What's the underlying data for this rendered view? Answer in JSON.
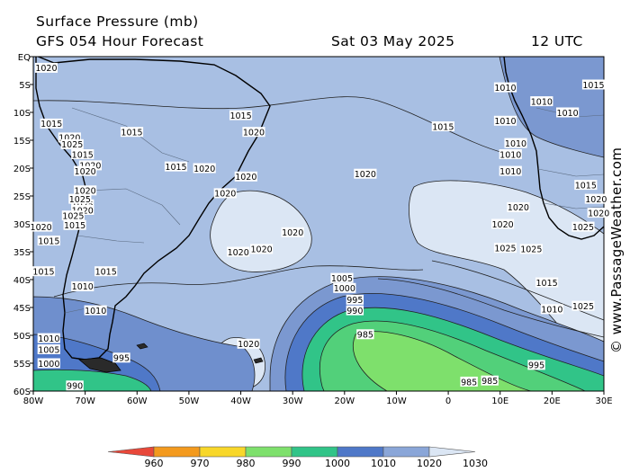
{
  "header": {
    "title": "Surface Pressure (mb)",
    "model": "GFS 054 Hour Forecast",
    "date": "Sat 03 May 2025",
    "time": "12 UTC"
  },
  "credit": "© www.PassageWeather.com",
  "axes": {
    "lat_labels": [
      "EQ",
      "5S",
      "10S",
      "15S",
      "20S",
      "25S",
      "30S",
      "35S",
      "40S",
      "45S",
      "50S",
      "55S",
      "60S"
    ],
    "lon_labels": [
      "80W",
      "70W",
      "60W",
      "50W",
      "40W",
      "30W",
      "20W",
      "10W",
      "0",
      "10E",
      "20E",
      "30E"
    ]
  },
  "legend": {
    "ticks": [
      "960",
      "970",
      "980",
      "990",
      "1000",
      "1010",
      "1020",
      "1030"
    ],
    "colors": [
      "#e8483a",
      "#f39a1e",
      "#f8d72a",
      "#7ee06c",
      "#31c488",
      "#4f78c8",
      "#8aa6d8",
      "#dbe6f4"
    ]
  },
  "contour_labels": [
    {
      "t": "1010",
      "lon": 20,
      "lat": -45.3
    },
    {
      "t": "1015",
      "lon": 28,
      "lat": -5
    },
    {
      "t": "1015",
      "lon": 19,
      "lat": -40.5
    },
    {
      "t": "1015",
      "lon": -40,
      "lat": -10.5
    },
    {
      "t": "1015",
      "lon": -1,
      "lat": -12.5
    },
    {
      "t": "1015",
      "lon": -52.5,
      "lat": -19.7
    },
    {
      "t": "1015",
      "lon": -61,
      "lat": -13.5
    },
    {
      "t": "1015",
      "lon": -70.5,
      "lat": -17.5
    },
    {
      "t": "1015",
      "lon": -76.5,
      "lat": -12
    },
    {
      "t": "1015",
      "lon": -77,
      "lat": -33
    },
    {
      "t": "1015",
      "lon": -78,
      "lat": -38.5
    },
    {
      "t": "1015",
      "lon": -66,
      "lat": -38.5
    },
    {
      "t": "1020",
      "lon": -37.5,
      "lat": -13.5
    },
    {
      "t": "1020",
      "lon": -39,
      "lat": -21.5
    },
    {
      "t": "1020",
      "lon": -36,
      "lat": -34.5
    },
    {
      "t": "1020",
      "lon": -40.5,
      "lat": -35
    },
    {
      "t": "1020",
      "lon": -43,
      "lat": -24.5
    },
    {
      "t": "1020",
      "lon": -47,
      "lat": -20
    },
    {
      "t": "1020",
      "lon": -30,
      "lat": -31.5
    },
    {
      "t": "1020",
      "lon": -16,
      "lat": -21
    },
    {
      "t": "1020",
      "lon": -38.5,
      "lat": -51.5
    },
    {
      "t": "1020",
      "lon": 10.5,
      "lat": -30
    },
    {
      "t": "1020",
      "lon": 13.5,
      "lat": -27
    },
    {
      "t": "1025",
      "lon": 16,
      "lat": -34.5
    },
    {
      "t": "1025",
      "lon": 11,
      "lat": -34.3
    },
    {
      "t": "1025",
      "lon": 26,
      "lat": -30.5
    },
    {
      "t": "1025",
      "lon": 26,
      "lat": -44.7
    },
    {
      "t": "1010",
      "lon": -68,
      "lat": -45.5
    },
    {
      "t": "1010",
      "lon": -70.5,
      "lat": -41.2
    },
    {
      "t": "1010",
      "lon": -77,
      "lat": -50.5
    },
    {
      "t": "1005",
      "lon": -20.5,
      "lat": -39.7
    },
    {
      "t": "1005",
      "lon": -77,
      "lat": -52.5
    },
    {
      "t": "1000",
      "lon": -20,
      "lat": -41.5
    },
    {
      "t": "1000",
      "lon": -77,
      "lat": -55
    },
    {
      "t": "995",
      "lon": -18,
      "lat": -43.6
    },
    {
      "t": "995",
      "lon": -63,
      "lat": -54
    },
    {
      "t": "995",
      "lon": 17,
      "lat": -55.3
    },
    {
      "t": "990",
      "lon": -18,
      "lat": -45.5
    },
    {
      "t": "990",
      "lon": -72,
      "lat": -59
    },
    {
      "t": "985",
      "lon": -16,
      "lat": -49.8
    },
    {
      "t": "985",
      "lon": 4,
      "lat": -58.3
    },
    {
      "t": "985",
      "lon": 8,
      "lat": -58.1
    },
    {
      "t": "1010",
      "lon": 11,
      "lat": -5.5
    },
    {
      "t": "1010",
      "lon": 11,
      "lat": -11.5
    },
    {
      "t": "1010",
      "lon": 13,
      "lat": -15.5
    },
    {
      "t": "1010",
      "lon": 12,
      "lat": -17.5
    },
    {
      "t": "1010",
      "lon": 12,
      "lat": -20.5
    },
    {
      "t": "1010",
      "lon": 18,
      "lat": -8
    },
    {
      "t": "1010",
      "lon": 23,
      "lat": -10
    },
    {
      "t": "1015",
      "lon": 26.5,
      "lat": -23
    },
    {
      "t": "1020",
      "lon": 28.5,
      "lat": -25.5
    },
    {
      "t": "1020",
      "lon": 29,
      "lat": -28
    },
    {
      "t": "1020",
      "lon": -77.5,
      "lat": -2
    },
    {
      "t": "1020",
      "lon": -78.5,
      "lat": -30.5
    },
    {
      "t": "1020",
      "lon": -73,
      "lat": -14.5
    },
    {
      "t": "1025",
      "lon": -72.5,
      "lat": -15.7
    },
    {
      "t": "1020",
      "lon": -69,
      "lat": -19.5
    },
    {
      "t": "1020",
      "lon": -70,
      "lat": -20.5
    },
    {
      "t": "1025",
      "lon": -70.5,
      "lat": -26.5
    },
    {
      "t": "1020",
      "lon": -70,
      "lat": -24
    },
    {
      "t": "1025",
      "lon": -71,
      "lat": -25.5
    },
    {
      "t": "1020",
      "lon": -70.5,
      "lat": -27.5
    },
    {
      "t": "1025",
      "lon": -72.3,
      "lat": -28.5
    },
    {
      "t": "1015",
      "lon": -72,
      "lat": -30.2
    }
  ]
}
